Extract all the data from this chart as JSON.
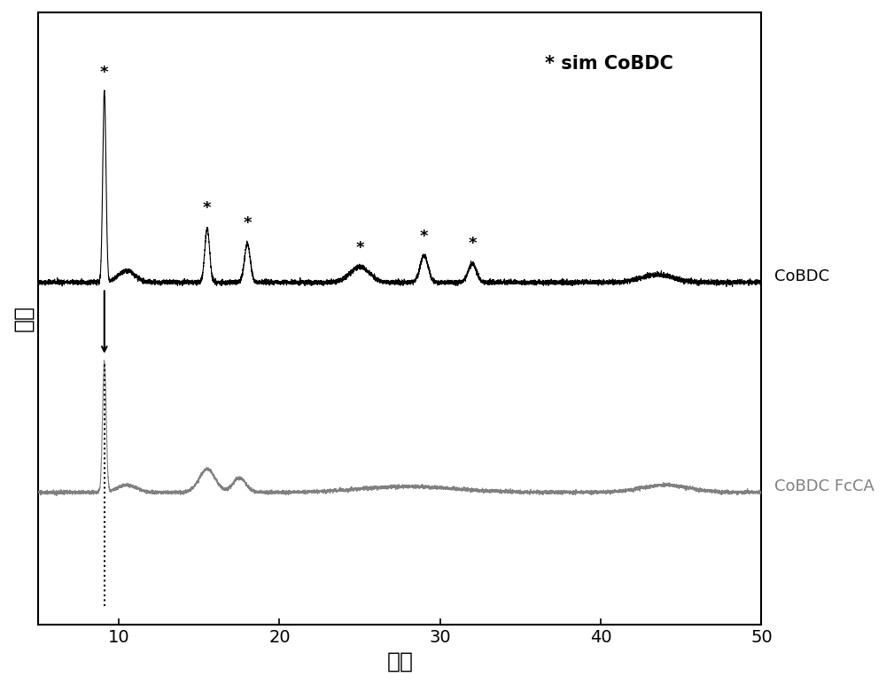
{
  "xlim": [
    5,
    50
  ],
  "cobdc_color": "#000000",
  "fcca_color": "#808080",
  "background_color": "#ffffff",
  "xlabel": "度数",
  "ylabel": "强度",
  "annotation_text": "* sim CoBDC",
  "cobdc_label": "CoBDC",
  "fcca_label": "CoBDC FcCA",
  "star_positions_cobdc": [
    9.1,
    15.5,
    18.0,
    25.0,
    29.0,
    32.0
  ],
  "dashed_line_x": 9.1,
  "xlabel_fontsize": 18,
  "ylabel_fontsize": 18,
  "label_fontsize": 13,
  "annotation_fontsize": 15,
  "tick_fontsize": 14
}
